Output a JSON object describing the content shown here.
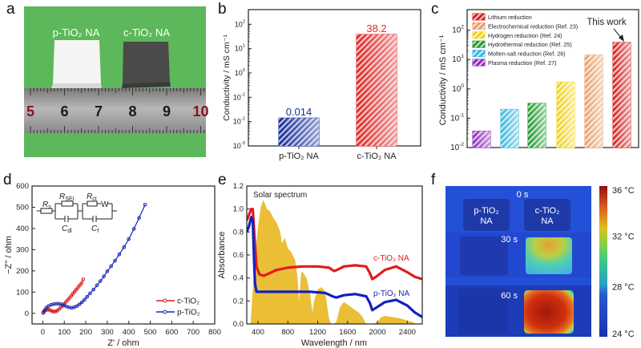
{
  "figure": {
    "panel_letters": [
      "a",
      "b",
      "c",
      "d",
      "e",
      "f"
    ]
  },
  "photo_panel": {
    "sample_labels": [
      "p-TiO₂ NA",
      "c-TiO₂ NA"
    ],
    "ruler_numbers": [
      "5",
      "6",
      "7",
      "8",
      "9",
      "10"
    ],
    "colors": {
      "background": "#5cb85a",
      "white_sample": "#f4f4f2",
      "black_sample": "#4a4a48",
      "ruler": "#9a9a9a"
    }
  },
  "thermal_panel": {
    "time_labels": [
      "0 s",
      "30 s",
      "60 s"
    ],
    "sample_labels": [
      {
        "line1": "p-TiO₂",
        "line2": "NA"
      },
      {
        "line1": "c-TiO₂",
        "line2": "NA"
      }
    ],
    "colorbar": {
      "min": 24,
      "max": 36,
      "unit": "°C",
      "tick_labels": [
        "36 °C",
        "32 °C",
        "28 °C",
        "24 °C"
      ],
      "tick_values": [
        36,
        32,
        28,
        24
      ]
    },
    "c_sample_temps": {
      "0 s": 24,
      "30 s": 32,
      "60 s": 36
    },
    "p_sample_temps": {
      "0 s": 24,
      "30 s": 25,
      "60 s": 25
    }
  },
  "chart_data": [
    {
      "id": "b",
      "type": "bar",
      "scale": "log",
      "title": "",
      "xlabel": "",
      "ylabel": "Conductivity / mS cm⁻¹",
      "categories": [
        "p-TiO₂ NA",
        "c-TiO₂ NA"
      ],
      "values": [
        0.014,
        38.2
      ],
      "data_labels": [
        "0.014",
        "38.2"
      ],
      "colors": [
        "#1a2f9c",
        "#e02a2a"
      ],
      "ylim": [
        0.001,
        400
      ],
      "yticks": [
        0.001,
        0.01,
        0.1,
        1,
        10,
        100
      ],
      "ytick_labels": [
        [
          "10",
          "-3"
        ],
        [
          "10",
          "-2"
        ],
        [
          "10",
          "-1"
        ],
        [
          "10",
          "0"
        ],
        [
          "10",
          "1"
        ],
        [
          "10",
          "2"
        ]
      ]
    },
    {
      "id": "c",
      "type": "bar",
      "scale": "log",
      "title": "",
      "xlabel": "",
      "ylabel": "Conductivity / mS cm⁻¹",
      "categories": [
        "Plasma reduction (Ref. 27)",
        "Molten-salt reduction (Ref. 26)",
        "Hydrothermal reduction (Ref. 25)",
        "Hydrogen reduction (Ref. 24)",
        "Electrochemical reduction (Ref. 23)",
        "Lithium reduction"
      ],
      "values": [
        0.036,
        0.2,
        0.32,
        1.7,
        14,
        38.2
      ],
      "colors": [
        "#8e2bbd",
        "#3bb6e0",
        "#1f9a2e",
        "#f0d21a",
        "#e8a06a",
        "#d42424"
      ],
      "legend": [
        {
          "label": "Lithium reduction",
          "color": "#d42424"
        },
        {
          "label": "Electrochemical reduction (Ref. 23)",
          "color": "#e8a06a"
        },
        {
          "label": "Hydrogen reduction (Ref. 24)",
          "color": "#f0d21a"
        },
        {
          "label": "Hydrothermal reduction (Ref. 25)",
          "color": "#1f9a2e"
        },
        {
          "label": "Molten-salt reduction (Ref. 26)",
          "color": "#3bb6e0"
        },
        {
          "label": "Plasma reduction (Ref. 27)",
          "color": "#8e2bbd"
        }
      ],
      "legend_position": "top-left",
      "annotation": "This work",
      "ylim": [
        0.01,
        500
      ],
      "yticks": [
        0.01,
        0.1,
        1,
        10,
        100
      ],
      "ytick_labels": [
        [
          "10",
          "-2"
        ],
        [
          "10",
          "-1"
        ],
        [
          "10",
          "0"
        ],
        [
          "10",
          "1"
        ],
        [
          "10",
          "2"
        ]
      ]
    },
    {
      "id": "d",
      "type": "scatter",
      "title": "",
      "xlabel": "Z' / ohm",
      "ylabel": "−Z'' / ohm",
      "xlim": [
        -50,
        800
      ],
      "ylim": [
        -50,
        600
      ],
      "xticks": [
        0,
        100,
        200,
        300,
        400,
        500,
        600,
        700,
        800
      ],
      "yticks": [
        0,
        100,
        200,
        300,
        400,
        500,
        600
      ],
      "legend_position": "bottom-right",
      "series": [
        {
          "name": "c-TiO₂",
          "color": "#d42020",
          "x": [
            2,
            6,
            12,
            20,
            28,
            36,
            44,
            52,
            60,
            68,
            76,
            84,
            92,
            100,
            108,
            116,
            124,
            132,
            140,
            148,
            156,
            164,
            172,
            180,
            188
          ],
          "y": [
            2,
            8,
            14,
            17,
            17,
            14,
            10,
            8,
            9,
            13,
            20,
            28,
            36,
            45,
            54,
            63,
            72,
            82,
            92,
            102,
            112,
            122,
            132,
            142,
            160
          ]
        },
        {
          "name": "p-TiO₂",
          "color": "#1a28b0",
          "x": [
            2,
            8,
            16,
            26,
            38,
            50,
            62,
            74,
            86,
            98,
            110,
            122,
            134,
            146,
            158,
            170,
            182,
            194,
            206,
            220,
            236,
            252,
            268,
            284,
            300,
            318,
            336,
            356,
            378,
            400,
            424,
            448,
            476
          ],
          "y": [
            4,
            14,
            26,
            34,
            40,
            43,
            45,
            45,
            43,
            38,
            32,
            28,
            26,
            28,
            34,
            42,
            52,
            64,
            78,
            94,
            112,
            132,
            152,
            174,
            198,
            222,
            248,
            278,
            312,
            350,
            398,
            450,
            512
          ]
        }
      ],
      "inset_circuit_labels": [
        "R",
        "s",
        "R",
        "SEI",
        "R",
        "ct",
        "W",
        "C",
        "dl",
        "C",
        "f"
      ]
    },
    {
      "id": "e",
      "type": "line",
      "title": "",
      "xlabel": "Wavelength / nm",
      "ylabel": "Absorbance",
      "xlim": [
        250,
        2600
      ],
      "ylim": [
        0,
        1.2
      ],
      "xticks": [
        400,
        800,
        1200,
        1600,
        2000,
        2400
      ],
      "yticks": [
        0.0,
        0.2,
        0.4,
        0.6,
        0.8,
        1.0,
        1.2
      ],
      "ytick_labels": [
        "0.0",
        "0.2",
        "0.4",
        "0.6",
        "0.8",
        "1.0",
        "1.2"
      ],
      "annotation": "Solar spectrum",
      "series": [
        {
          "name": "c-TiO₂ NA",
          "color": "#e01c1c",
          "x": [
            250,
            280,
            310,
            330,
            350,
            380,
            420,
            480,
            550,
            650,
            800,
            1000,
            1200,
            1350,
            1420,
            1460,
            1550,
            1700,
            1850,
            1900,
            1930,
            1980,
            2100,
            2250,
            2400,
            2500,
            2600
          ],
          "y": [
            0.9,
            0.95,
            1.0,
            1.0,
            0.8,
            0.5,
            0.43,
            0.42,
            0.44,
            0.47,
            0.49,
            0.5,
            0.5,
            0.49,
            0.46,
            0.47,
            0.5,
            0.51,
            0.5,
            0.44,
            0.39,
            0.41,
            0.47,
            0.5,
            0.45,
            0.41,
            0.39
          ]
        },
        {
          "name": "p-TiO₂ NA",
          "color": "#1222c0",
          "x": [
            250,
            280,
            310,
            330,
            345,
            360,
            380,
            420,
            500,
            700,
            900,
            1100,
            1300,
            1400,
            1450,
            1550,
            1700,
            1850,
            1900,
            1930,
            1980,
            2100,
            2250,
            2400,
            2500,
            2600
          ],
          "y": [
            0.8,
            0.85,
            0.93,
            0.9,
            0.6,
            0.35,
            0.28,
            0.28,
            0.28,
            0.28,
            0.28,
            0.28,
            0.27,
            0.24,
            0.23,
            0.25,
            0.26,
            0.24,
            0.18,
            0.12,
            0.14,
            0.19,
            0.21,
            0.16,
            0.1,
            0.06
          ]
        },
        {
          "name": "Solar spectrum",
          "color": "#e8b820",
          "kind": "area",
          "x": [
            300,
            330,
            360,
            400,
            440,
            470,
            490,
            520,
            560,
            600,
            650,
            700,
            720,
            760,
            800,
            850,
            900,
            930,
            950,
            980,
            1000,
            1050,
            1100,
            1130,
            1150,
            1200,
            1250,
            1300,
            1350,
            1380,
            1420,
            1450,
            1500,
            1550,
            1600,
            1700,
            1750,
            1800,
            1850,
            1950,
            2000,
            2050,
            2100,
            2200,
            2300,
            2400,
            2500
          ],
          "y": [
            0.0,
            0.3,
            0.55,
            0.85,
            1.02,
            1.08,
            1.05,
            1.0,
            0.98,
            0.93,
            0.88,
            0.8,
            0.7,
            0.75,
            0.66,
            0.62,
            0.55,
            0.4,
            0.2,
            0.45,
            0.45,
            0.4,
            0.25,
            0.1,
            0.2,
            0.3,
            0.32,
            0.28,
            0.05,
            0.0,
            0.0,
            0.02,
            0.15,
            0.19,
            0.17,
            0.12,
            0.1,
            0.06,
            0.0,
            0.0,
            0.02,
            0.06,
            0.07,
            0.06,
            0.05,
            0.03,
            0.01
          ]
        }
      ]
    }
  ]
}
